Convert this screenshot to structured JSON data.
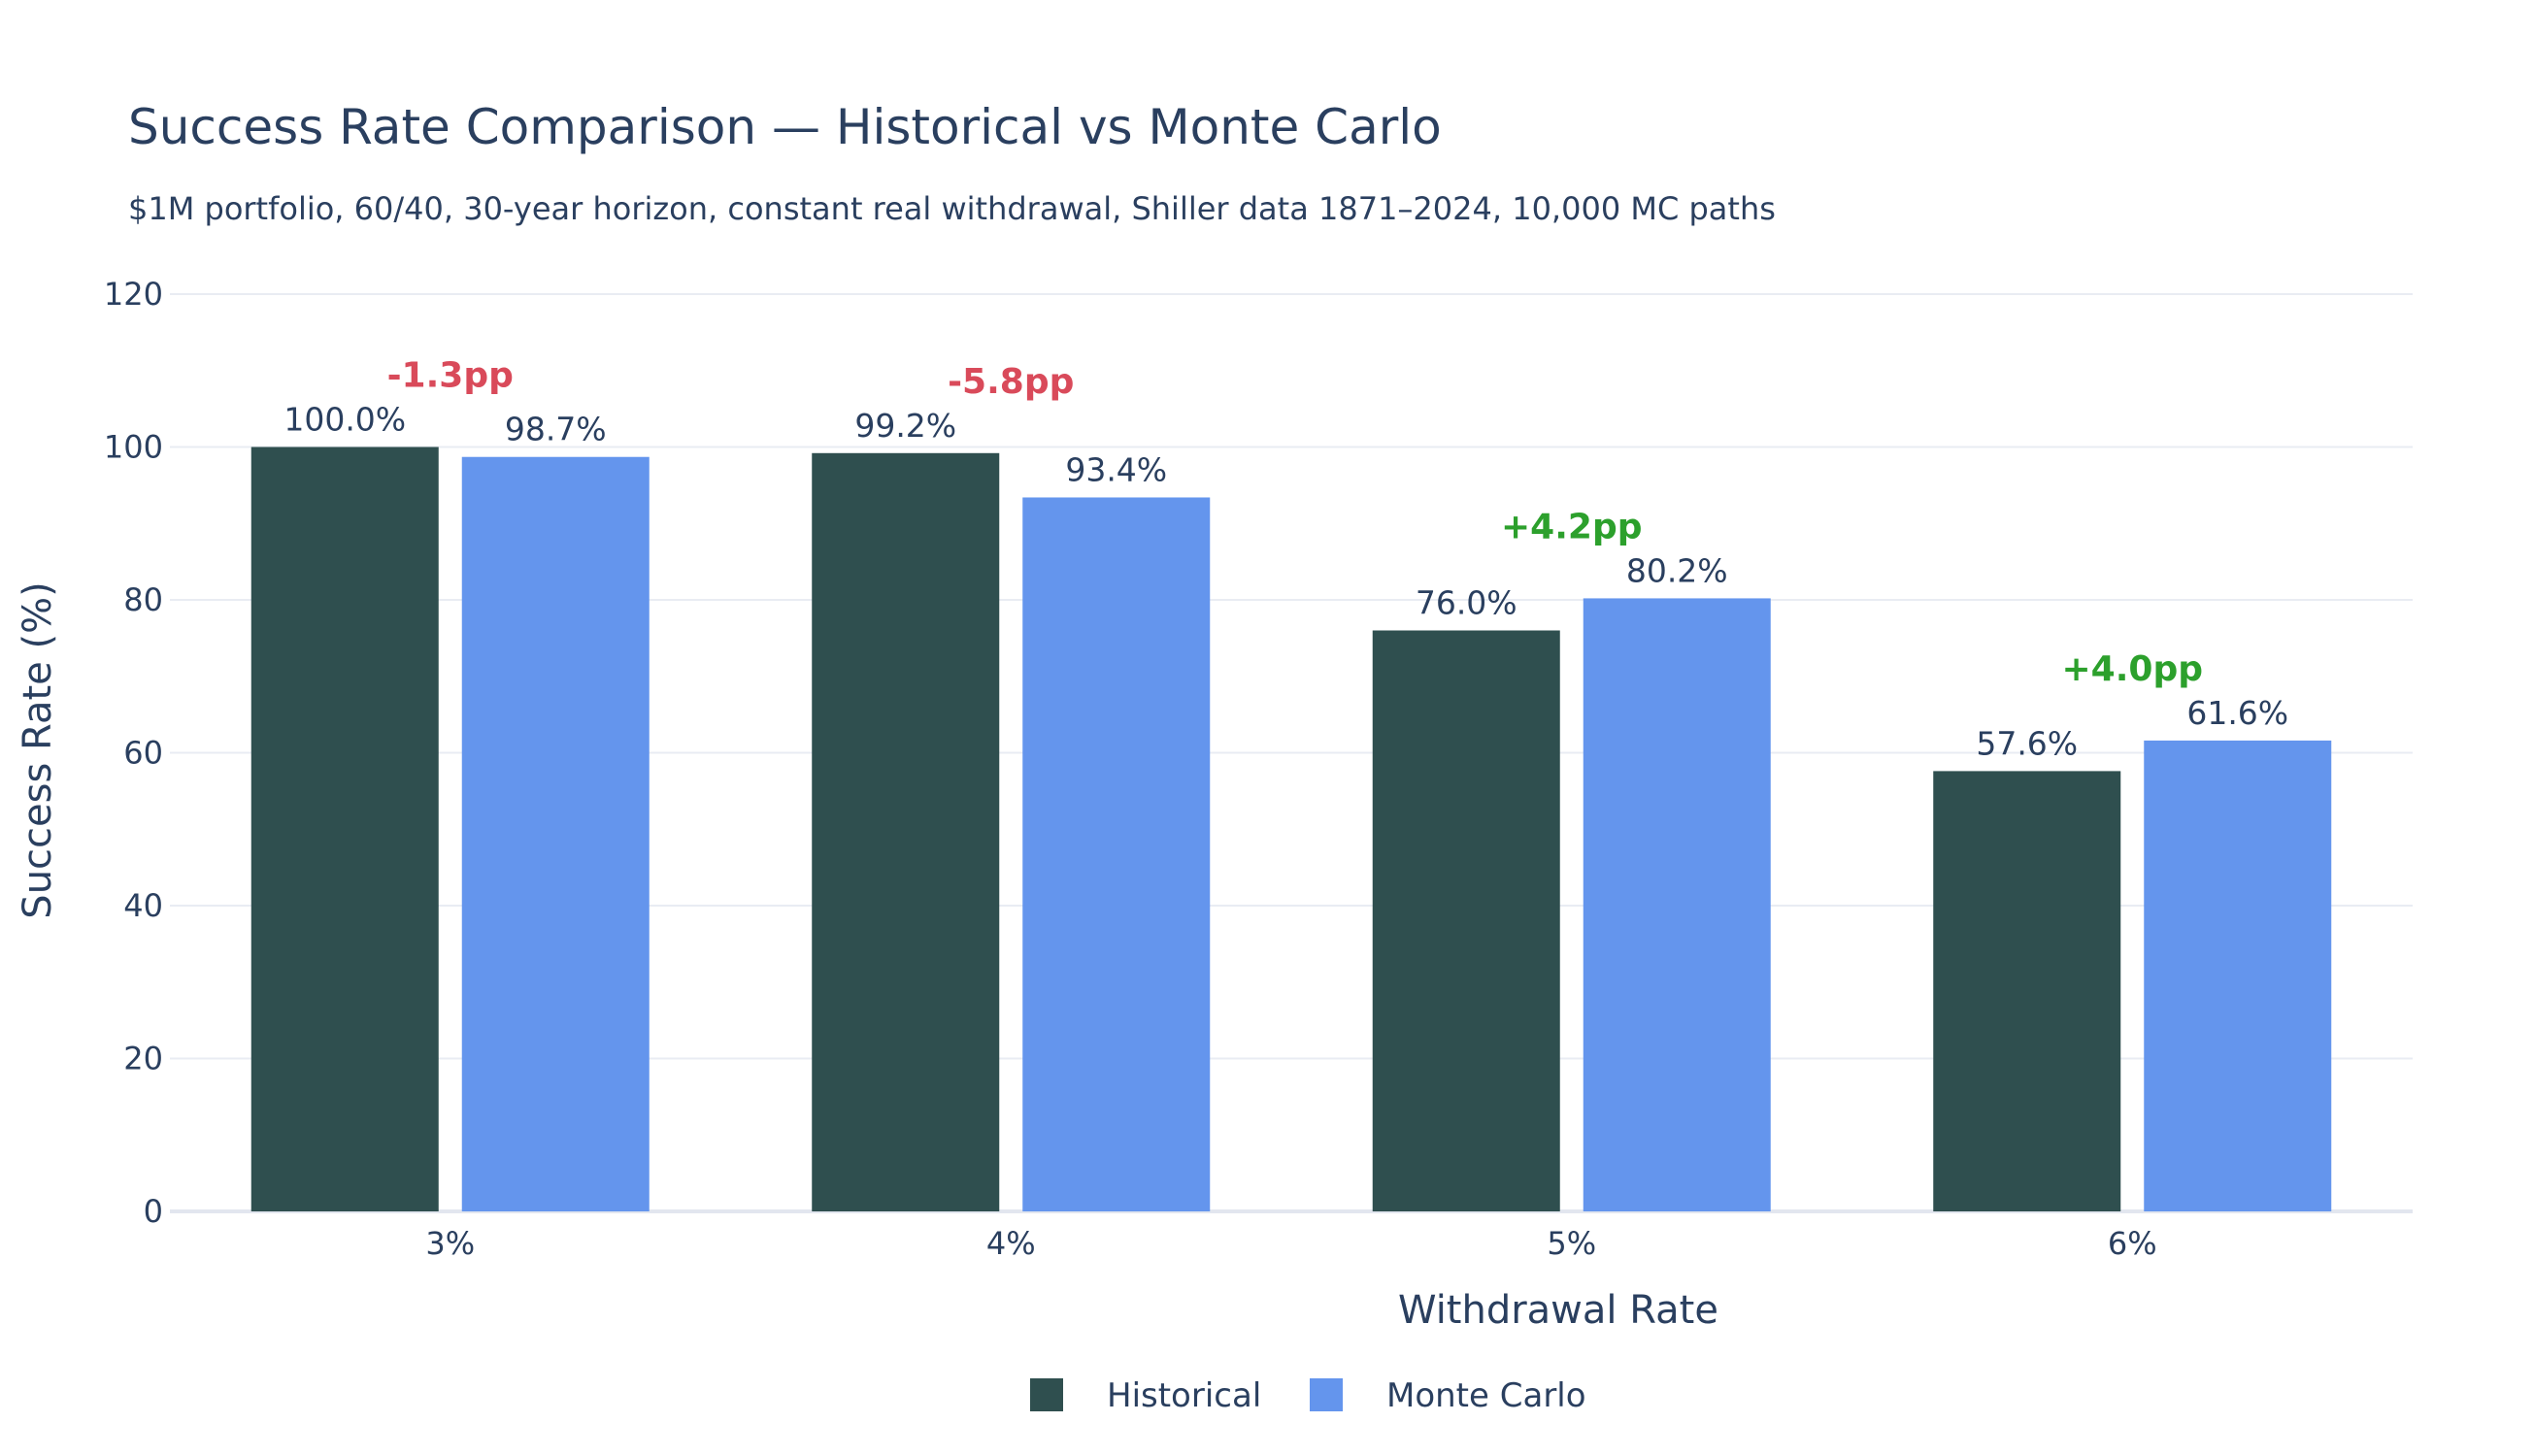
{
  "chart_data": {
    "type": "bar",
    "title": "Success Rate Comparison — Historical vs Monte Carlo",
    "subtitle": "$1M portfolio, 60/40, 30-year horizon, constant real withdrawal, Shiller data 1871–2024, 10,000 MC paths",
    "xlabel": "Withdrawal Rate",
    "ylabel": "Success Rate (%)",
    "ylim": [
      0,
      120
    ],
    "yticks": [
      0,
      20,
      40,
      60,
      80,
      100,
      120
    ],
    "categories": [
      "3%",
      "4%",
      "5%",
      "6%"
    ],
    "series": [
      {
        "name": "Historical",
        "values": [
          100.0,
          99.2,
          76.0,
          57.6
        ],
        "labels": [
          "100.0%",
          "99.2%",
          "76.0%",
          "57.6%"
        ],
        "color": "#2f4f4f"
      },
      {
        "name": "Monte Carlo",
        "values": [
          98.7,
          93.4,
          80.2,
          61.6
        ],
        "labels": [
          "98.7%",
          "93.4%",
          "80.2%",
          "61.6%"
        ],
        "color": "#6495ed"
      }
    ],
    "annotations": [
      {
        "category": "3%",
        "text": "-1.3pp",
        "color": "#d94a5a"
      },
      {
        "category": "4%",
        "text": "-5.8pp",
        "color": "#d94a5a"
      },
      {
        "category": "5%",
        "text": "+4.2pp",
        "color": "#2ca02c"
      },
      {
        "category": "6%",
        "text": "+4.0pp",
        "color": "#2ca02c"
      }
    ],
    "grid": true,
    "legend_position": "bottom-center"
  }
}
